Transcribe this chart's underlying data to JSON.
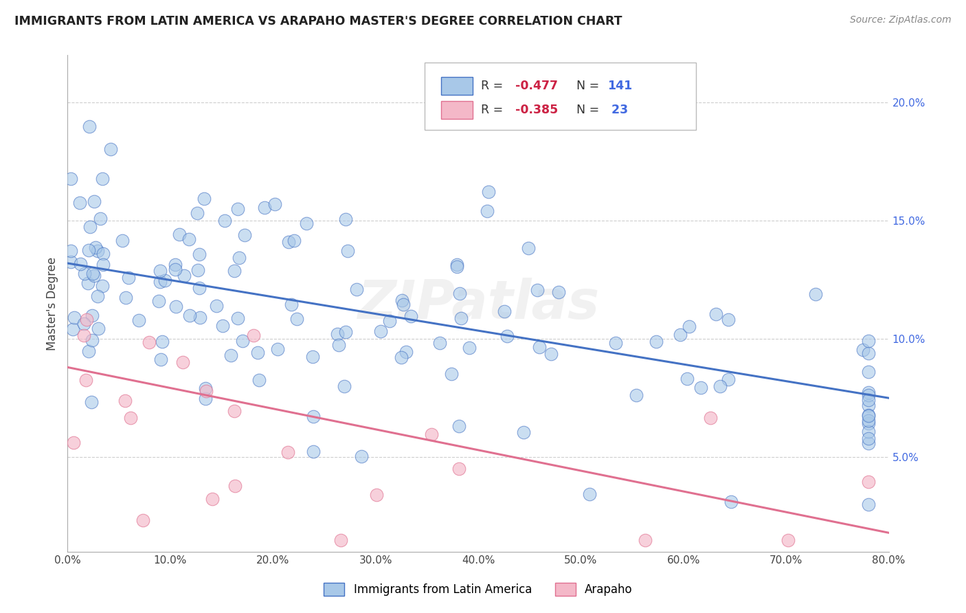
{
  "title": "IMMIGRANTS FROM LATIN AMERICA VS ARAPAHO MASTER'S DEGREE CORRELATION CHART",
  "source_text": "Source: ZipAtlas.com",
  "ylabel": "Master's Degree",
  "legend_label1": "Immigrants from Latin America",
  "legend_label2": "Arapaho",
  "legend_r1": "R = -0.477",
  "legend_n1": "N = 141",
  "legend_r2": "R = -0.385",
  "legend_n2": "N =  23",
  "color_blue": "#a8c8e8",
  "color_pink": "#f4b8c8",
  "color_blue_line": "#4472c4",
  "color_pink_line": "#e07090",
  "watermark": "ZIPatlas",
  "title_color": "#222222",
  "legend_r_color": "#cc2244",
  "legend_n_color": "#4169e1",
  "right_tick_color": "#4169e1",
  "background_color": "#ffffff",
  "grid_color": "#c8c8c8",
  "blue_line_x0": 0,
  "blue_line_x1": 80,
  "blue_line_y0": 13.2,
  "blue_line_y1": 7.5,
  "pink_line_x0": 0,
  "pink_line_x1": 80,
  "pink_line_y0": 8.8,
  "pink_line_y1": 1.8,
  "xmin": 0,
  "xmax": 80,
  "ymin": 1.0,
  "ymax": 22.0,
  "yticks": [
    5.0,
    10.0,
    15.0,
    20.0
  ],
  "xticks": [
    0,
    10,
    20,
    30,
    40,
    50,
    60,
    70,
    80
  ],
  "blue_n": 141,
  "pink_n": 23,
  "blue_r": -0.477,
  "pink_r": -0.385,
  "random_seed_blue": 42,
  "random_seed_pink": 7,
  "marker_size": 180
}
